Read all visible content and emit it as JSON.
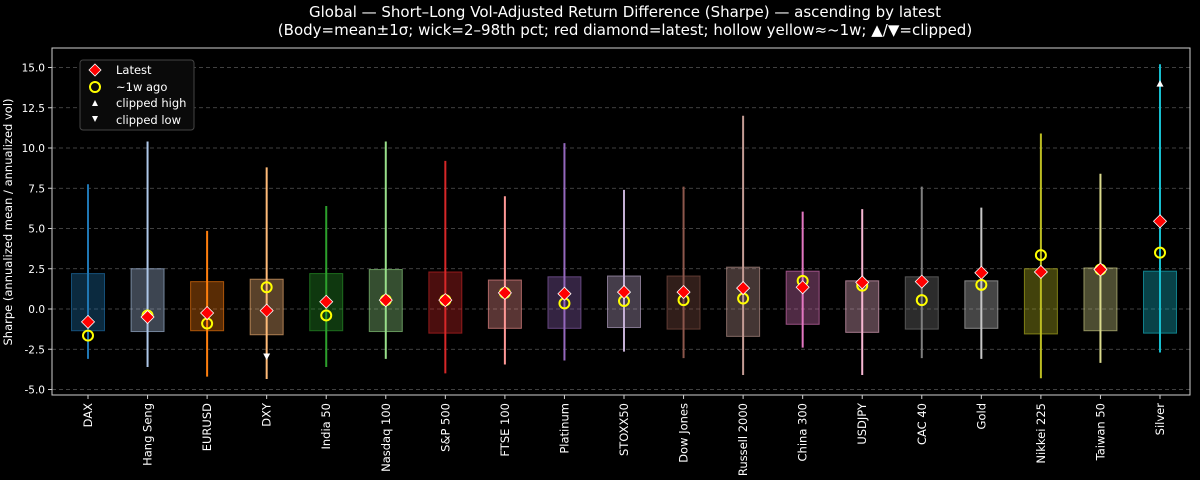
{
  "chart_data": {
    "type": "box-range",
    "title": "Global — Short–Long Vol-Adjusted Return Difference (Sharpe) — ascending by latest",
    "subtitle": "(Body=mean±1σ; wick=2–98th pct; red diamond=latest; hollow yellow≈~1w; ▲/▼=clipped)",
    "xlabel": "",
    "ylabel": "Sharpe (annualized mean / annualized vol)",
    "ylim": [
      -5.5,
      16.2
    ],
    "yticks": [
      -5.0,
      -2.5,
      0.0,
      2.5,
      5.0,
      7.5,
      10.0,
      12.5,
      15.0
    ],
    "grid": true,
    "legend": {
      "placement": "top-left",
      "entries": [
        {
          "label": "Latest",
          "marker": "red-diamond"
        },
        {
          "label": "~1w ago",
          "marker": "hollow-yellow-circle"
        },
        {
          "label": "clipped high",
          "marker": "white-triangle-up"
        },
        {
          "label": "clipped low",
          "marker": "white-triangle-down"
        }
      ]
    },
    "categories": [
      "DAX",
      "Hang Seng",
      "EURUSD",
      "DXY",
      "India 50",
      "Nasdaq 100",
      "S&P 500",
      "FTSE 100",
      "Platinum",
      "STOXX50",
      "Dow Jones",
      "Russell 2000",
      "China 300",
      "USDJPY",
      "CAC 40",
      "Gold",
      "Nikkei 225",
      "Taiwan 50",
      "Silver"
    ],
    "colors": [
      "#1f77b4",
      "#aec7e8",
      "#ff7f0e",
      "#ffbb78",
      "#2ca02c",
      "#98df8a",
      "#d62728",
      "#ff9896",
      "#9467bd",
      "#c5b0d5",
      "#8c564b",
      "#c49c94",
      "#e377c2",
      "#f7b6d2",
      "#7f7f7f",
      "#c7c7c7",
      "#bcbd22",
      "#dbdb8d",
      "#17becf"
    ],
    "body_high": [
      2.2,
      2.5,
      1.7,
      1.85,
      2.2,
      2.45,
      2.3,
      1.8,
      2.0,
      2.05,
      2.05,
      2.6,
      2.35,
      1.75,
      2.0,
      1.75,
      2.5,
      2.55,
      2.35
    ],
    "body_low": [
      -1.35,
      -1.4,
      -1.35,
      -1.6,
      -1.35,
      -1.4,
      -1.5,
      -1.2,
      -1.2,
      -1.15,
      -1.25,
      -1.7,
      -0.95,
      -1.45,
      -1.25,
      -1.2,
      -1.55,
      -1.35,
      -1.5
    ],
    "wick_high": [
      7.75,
      10.4,
      4.85,
      8.8,
      6.4,
      10.4,
      9.2,
      7.0,
      10.3,
      7.4,
      7.6,
      12.0,
      6.05,
      6.2,
      7.6,
      6.3,
      10.9,
      8.4,
      15.2
    ],
    "wick_low": [
      -3.1,
      -3.6,
      -4.2,
      -4.35,
      -3.6,
      -3.1,
      -4.0,
      -3.45,
      -3.2,
      -2.65,
      -3.05,
      -4.1,
      -2.4,
      -4.1,
      -3.05,
      -3.1,
      -4.3,
      -3.35,
      -2.7
    ],
    "latest": [
      -0.8,
      -0.5,
      -0.25,
      -0.1,
      0.45,
      0.55,
      0.55,
      1.0,
      0.95,
      1.05,
      1.05,
      1.3,
      1.35,
      1.65,
      1.7,
      2.25,
      2.3,
      2.45,
      5.45
    ],
    "week_ago": [
      -1.65,
      -0.4,
      -0.9,
      1.35,
      -0.4,
      0.55,
      0.55,
      1.0,
      0.35,
      0.5,
      0.55,
      0.65,
      1.75,
      1.45,
      0.55,
      1.5,
      3.35,
      2.45,
      3.5
    ],
    "clipped": [
      {
        "category": "DXY",
        "direction": "low",
        "value": -2.95
      },
      {
        "category": "Silver",
        "direction": "high",
        "value": 14.0
      }
    ]
  }
}
